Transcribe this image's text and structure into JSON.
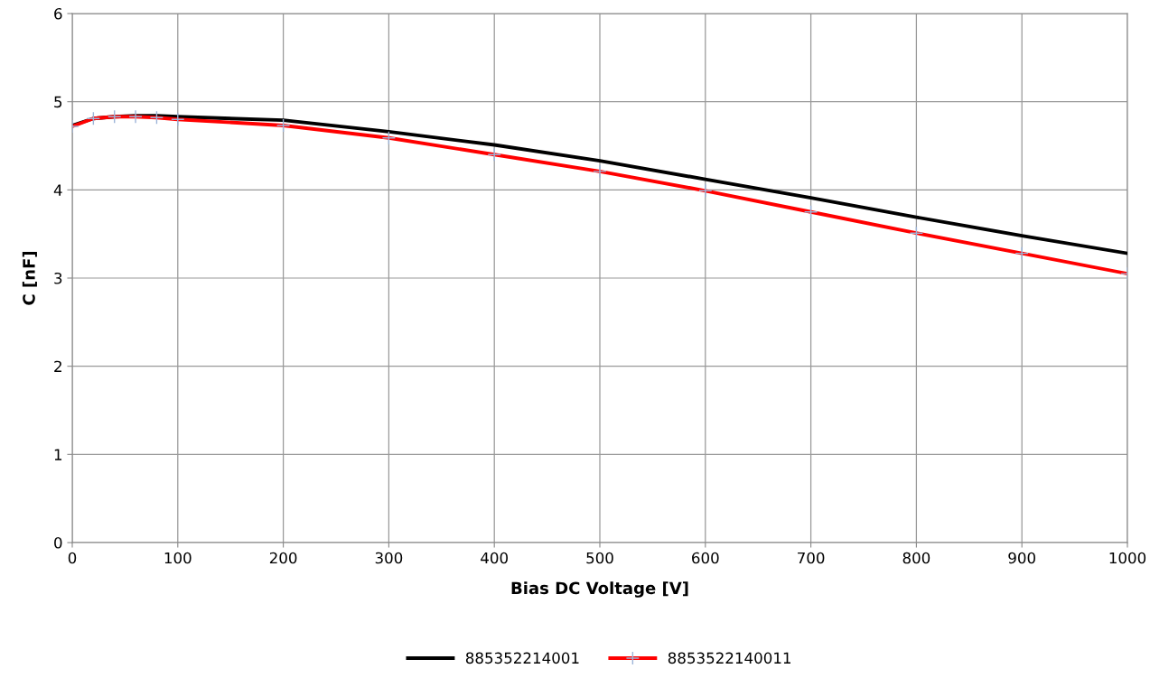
{
  "chart_data": {
    "type": "line",
    "xlabel": "Bias DC Voltage [V]",
    "ylabel": "C [nF]",
    "x": [
      0,
      20,
      40,
      60,
      80,
      100,
      200,
      300,
      400,
      500,
      600,
      700,
      800,
      900,
      1000
    ],
    "series": [
      {
        "name": "885352214001",
        "color": "#000000",
        "marker": "none",
        "values": [
          4.73,
          4.81,
          4.83,
          4.84,
          4.84,
          4.83,
          4.79,
          4.66,
          4.51,
          4.33,
          4.12,
          3.91,
          3.69,
          3.48,
          3.28
        ]
      },
      {
        "name": "8853522140011",
        "color": "#ff0000",
        "marker": "cross",
        "values": [
          4.72,
          4.81,
          4.83,
          4.83,
          4.82,
          4.8,
          4.73,
          4.59,
          4.4,
          4.21,
          3.99,
          3.75,
          3.51,
          3.28,
          3.05
        ]
      }
    ],
    "xlim": [
      0,
      1000
    ],
    "xticks": [
      0,
      100,
      200,
      300,
      400,
      500,
      600,
      700,
      800,
      900,
      1000
    ],
    "ylim": [
      0,
      6
    ],
    "yticks": [
      0,
      1,
      2,
      3,
      4,
      5,
      6
    ],
    "grid": true,
    "legend": "bottom",
    "line_style": "solid"
  }
}
